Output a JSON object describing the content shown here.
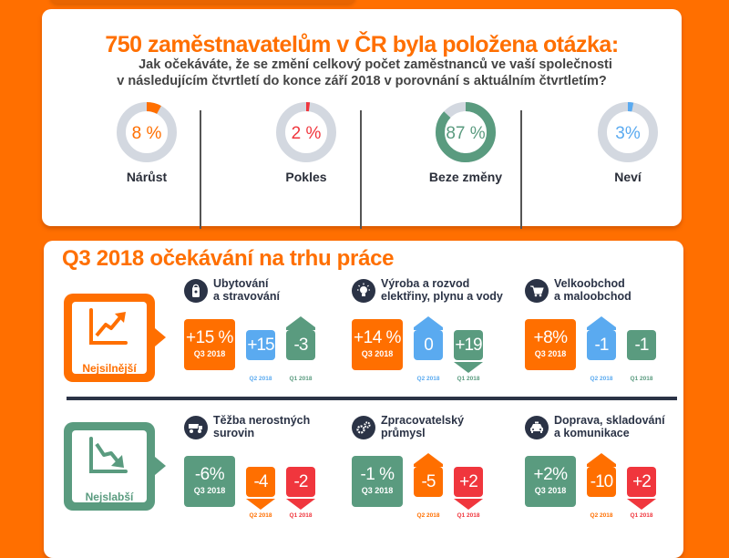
{
  "colors": {
    "brand_orange": "#ff6f00",
    "red": "#f0363d",
    "green": "#5a9b7f",
    "blue": "#5aaaf0",
    "gray_ring": "#d3d8e0",
    "navy": "#2b3346"
  },
  "survey": {
    "headline": "750 zaměstnavatelům v ČR byla položena otázka:",
    "question_line1": "Jak očekáváte, že se změní celkový počet zaměstnanců ve vaší společnosti",
    "question_line2": "v následujícím čtvrtletí do konce září 2018 v porovnání s aktuálním čtvrtletím?",
    "answers": [
      {
        "label": "Nárůst",
        "value": 8,
        "display": "8 %",
        "color": "#ff6f00"
      },
      {
        "label": "Pokles",
        "value": 2,
        "display": "2 %",
        "color": "#f0363d"
      },
      {
        "label": "Beze změny",
        "value": 87,
        "display": "87 %",
        "color": "#5a9b7f"
      },
      {
        "label": "Neví",
        "value": 3,
        "display": "3%",
        "color": "#5aaaf0"
      }
    ]
  },
  "outlook": {
    "title": "Q3 2018 očekávání na trhu práce",
    "strongest_label": "Nejsilnější",
    "weakest_label": "Nejslabší",
    "strongest": [
      {
        "icon": "door-hanger-icon",
        "name_line1": "Ubytování",
        "name_line2": "a stravování",
        "q3": "+15 %",
        "q3_label": "Q3 2018",
        "q2": "+15",
        "q2_label": "Q2 2018",
        "q2_arrow": "none",
        "q1": "-3",
        "q1_label": "Q1 2018",
        "q1_arrow": "up"
      },
      {
        "icon": "lightbulb-icon",
        "name_line1": "Výroba a rozvod",
        "name_line2": "elektřiny, plynu a vody",
        "q3": "+14 %",
        "q3_label": "Q3 2018",
        "q2": "0",
        "q2_label": "Q2 2018",
        "q2_arrow": "up",
        "q1": "+19",
        "q1_label": "Q1 2018",
        "q1_arrow": "down"
      },
      {
        "icon": "shopping-cart-icon",
        "name_line1": "Velkoobchod",
        "name_line2": "a maloobchod",
        "q3": "+8%",
        "q3_label": "Q3 2018",
        "q2": "-1",
        "q2_label": "Q2 2018",
        "q2_arrow": "up",
        "q1": "-1",
        "q1_label": "Q1 2018",
        "q1_arrow": "none"
      }
    ],
    "weakest": [
      {
        "icon": "dump-truck-icon",
        "name_line1": "Těžba nerostných",
        "name_line2": "surovin",
        "q3": "-6%",
        "q3_label": "Q3 2018",
        "q2": "-4",
        "q2_label": "Q2 2018",
        "q2_arrow": "down",
        "q1": "-2",
        "q1_label": "Q1 2018",
        "q1_arrow": "down"
      },
      {
        "icon": "gears-icon",
        "name_line1": "Zpracovatelský",
        "name_line2": "průmysl",
        "q3": "-1 %",
        "q3_label": "Q3 2018",
        "q2": "-5",
        "q2_label": "Q2 2018",
        "q2_arrow": "up",
        "q1": "+2",
        "q1_label": "Q1 2018",
        "q1_arrow": "down"
      },
      {
        "icon": "taxi-icon",
        "name_line1": "Doprava, skladování",
        "name_line2": "a komunikace",
        "q3": "+2%",
        "q3_label": "Q3 2018",
        "q2": "-10",
        "q2_label": "Q2 2018",
        "q2_arrow": "up",
        "q1": "+2",
        "q1_label": "Q1 2018",
        "q1_arrow": "down"
      }
    ]
  }
}
